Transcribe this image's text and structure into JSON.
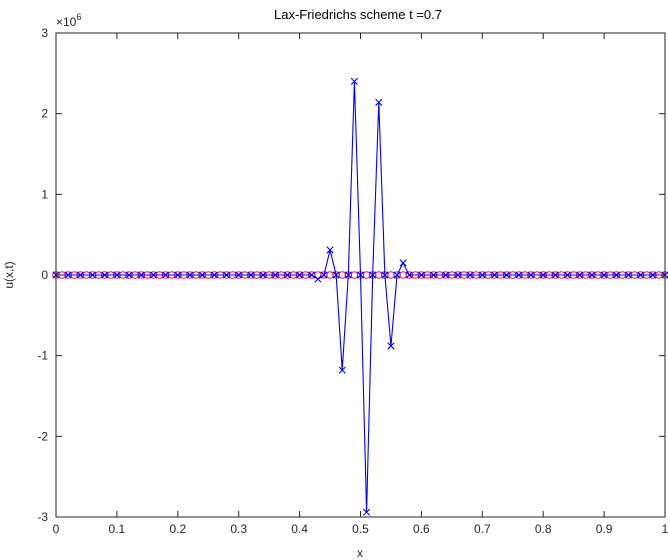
{
  "chart_data": {
    "type": "line",
    "title": "Lax-Friedrichs scheme t =0.7",
    "xlabel": "x",
    "ylabel": "u(x,t)",
    "exponent_label_base": "×10",
    "exponent_label_power": "6",
    "xlim": [
      0,
      1
    ],
    "ylim": [
      -3,
      3
    ],
    "xticks": [
      0,
      0.1,
      0.2,
      0.3,
      0.4,
      0.5,
      0.6,
      0.7,
      0.8,
      0.9,
      1
    ],
    "xtick_labels": [
      "0",
      "0.1",
      "0.2",
      "0.3",
      "0.4",
      "0.5",
      "0.6",
      "0.7",
      "0.8",
      "0.9",
      "1"
    ],
    "yticks": [
      -3,
      -2,
      -1,
      0,
      1,
      2,
      3
    ],
    "ytick_labels": [
      "-3",
      "-2",
      "-1",
      "0",
      "1",
      "2",
      "3"
    ],
    "y_scale_factor": 1000000,
    "grid": false,
    "series": [
      {
        "marker": "o",
        "color": "#e8154a",
        "line": false,
        "x_start": 0,
        "x_end": 1,
        "x_step": 0.01,
        "y_constant": 0
      },
      {
        "marker": "x",
        "color": "#0000ff",
        "line": true,
        "x_start": 0,
        "x_end": 1,
        "x_step": 0.02,
        "y_default": 0,
        "nonzero_points": [
          {
            "x": 0.43,
            "y": -0.05
          },
          {
            "x": 0.45,
            "y": 0.31
          },
          {
            "x": 0.47,
            "y": -1.18
          },
          {
            "x": 0.49,
            "y": 2.4
          },
          {
            "x": 0.51,
            "y": -2.94
          },
          {
            "x": 0.53,
            "y": 2.14
          },
          {
            "x": 0.55,
            "y": -0.88
          },
          {
            "x": 0.57,
            "y": 0.15
          }
        ]
      }
    ]
  }
}
